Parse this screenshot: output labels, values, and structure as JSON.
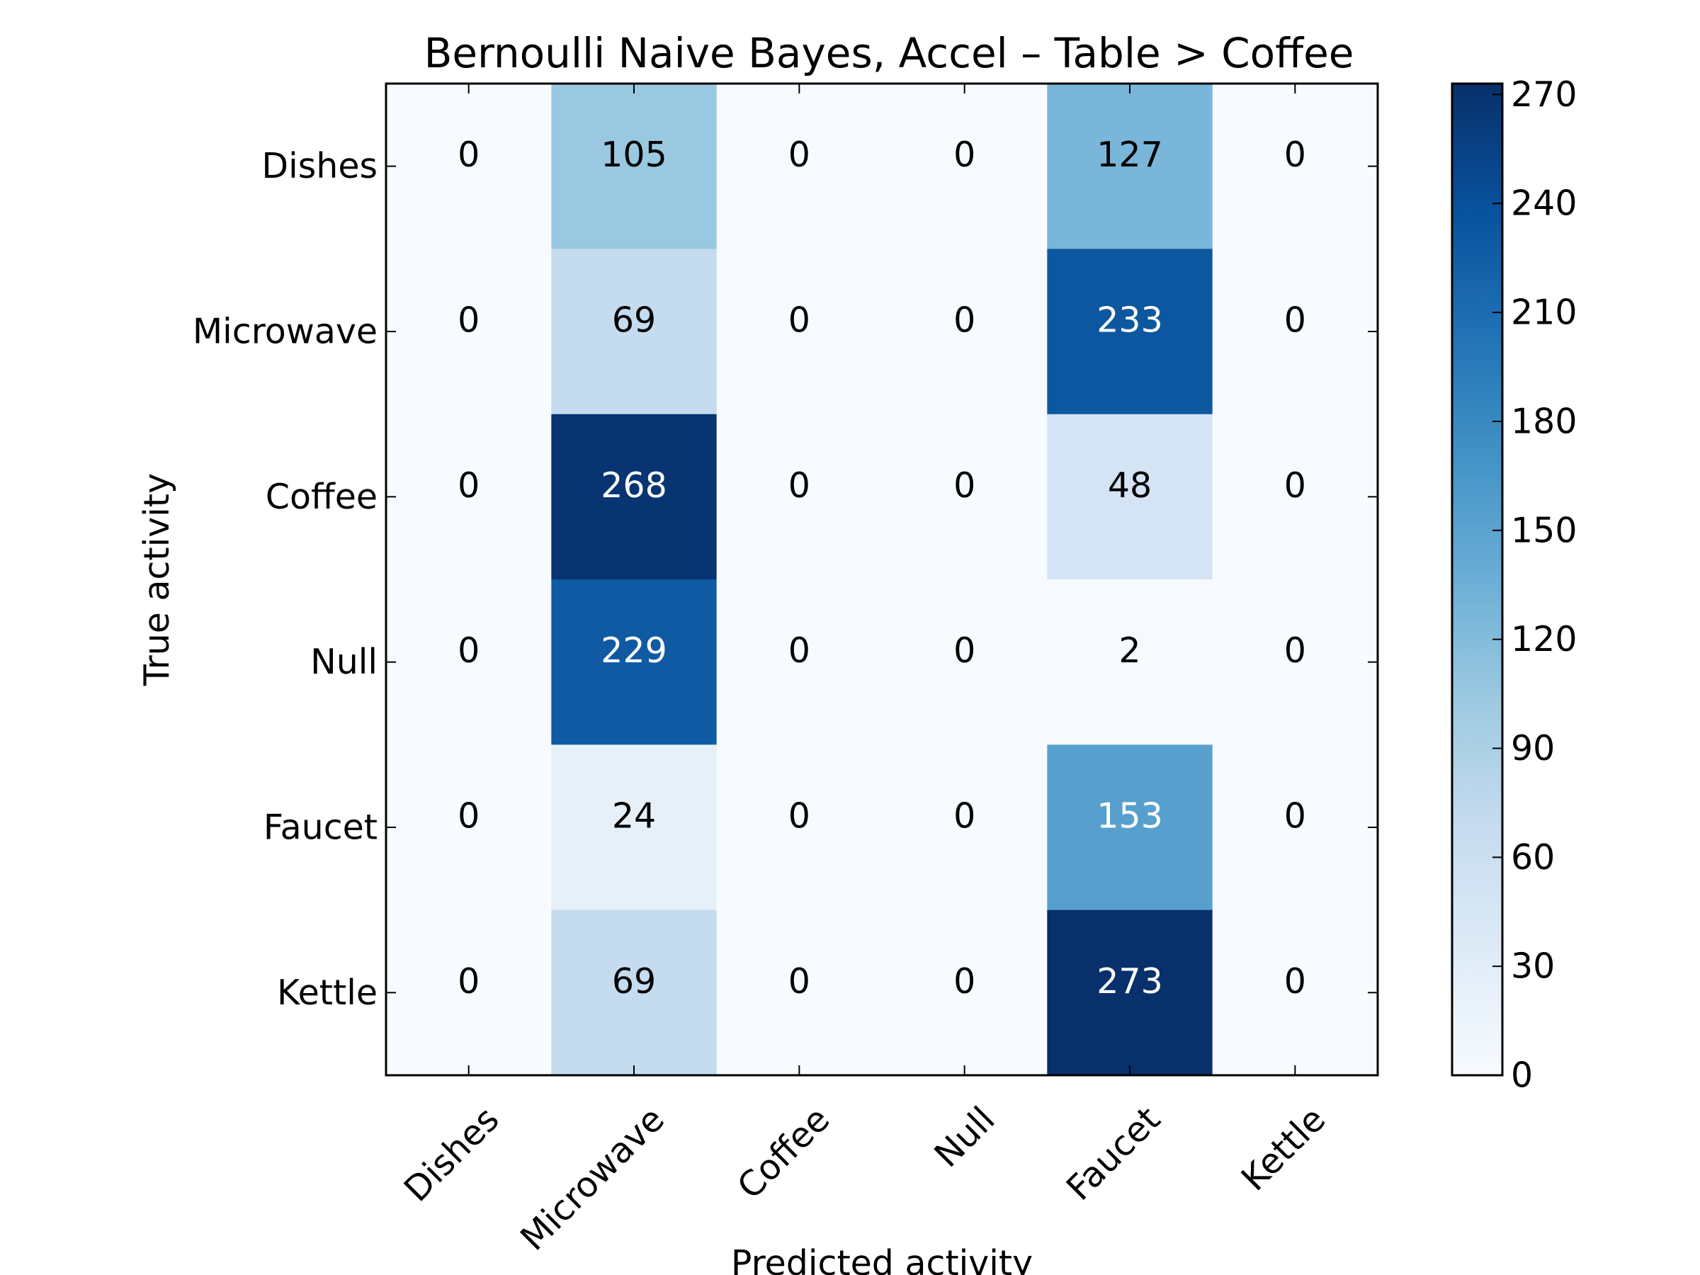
{
  "chart_data": {
    "type": "heatmap",
    "title": "Bernoulli Naive Bayes, Accel – Table > Coffee",
    "xlabel": "Predicted activity",
    "ylabel": "True activity",
    "x_categories": [
      "Dishes",
      "Microwave",
      "Coffee",
      "Null",
      "Faucet",
      "Kettle"
    ],
    "y_categories": [
      "Dishes",
      "Microwave",
      "Coffee",
      "Null",
      "Faucet",
      "Kettle"
    ],
    "values": [
      [
        0,
        105,
        0,
        0,
        127,
        0
      ],
      [
        0,
        69,
        0,
        0,
        233,
        0
      ],
      [
        0,
        268,
        0,
        0,
        48,
        0
      ],
      [
        0,
        229,
        0,
        0,
        2,
        0
      ],
      [
        0,
        24,
        0,
        0,
        153,
        0
      ],
      [
        0,
        69,
        0,
        0,
        273,
        0
      ]
    ],
    "colormap": "Blues",
    "colorbar": {
      "ticks": [
        "0",
        "30",
        "60",
        "90",
        "120",
        "150",
        "180",
        "210",
        "240",
        "270"
      ],
      "range": [
        0,
        273
      ]
    },
    "grid": false
  }
}
